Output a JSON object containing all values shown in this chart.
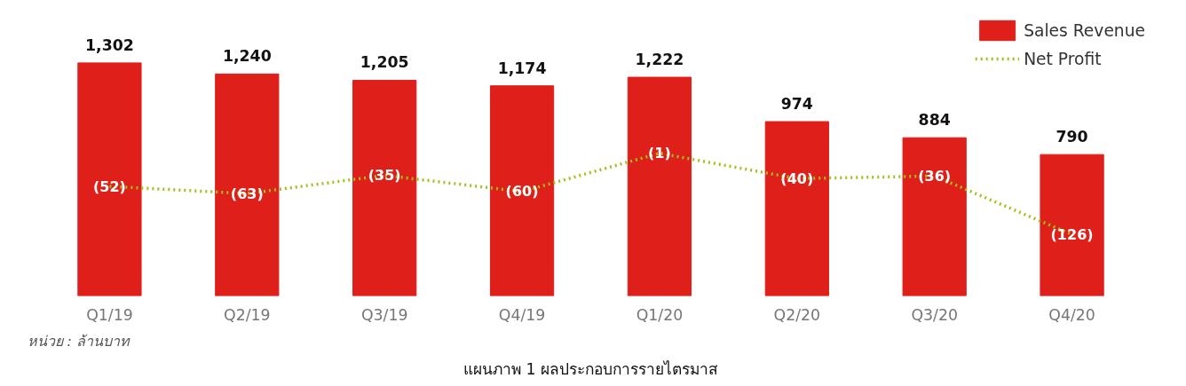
{
  "chart_data": {
    "type": "bar",
    "title": "แผนภาพ 1 ผลประกอบการรายไตรมาส",
    "categories": [
      "Q1/19",
      "Q2/19",
      "Q3/19",
      "Q4/19",
      "Q1/20",
      "Q2/20",
      "Q3/20",
      "Q4/20"
    ],
    "series": [
      {
        "name": "Sales Revenue",
        "color": "#df1f1a",
        "values": [
          1302,
          1240,
          1205,
          1174,
          1222,
          974,
          884,
          790
        ],
        "value_labels": [
          "1,302",
          "1,240",
          "1,205",
          "1,174",
          "1,222",
          "974",
          "884",
          "790"
        ]
      },
      {
        "name": "Net Profit",
        "type": "line",
        "axis": "y2",
        "color": "#9cc31c",
        "line_style": "dotted",
        "values": [
          -52,
          -63,
          -35,
          -60,
          -1,
          -40,
          -36,
          -126
        ],
        "value_labels": [
          "(52)",
          "(63)",
          "(35)",
          "(60)",
          "(1)",
          "(40)",
          "(36)",
          "(126)"
        ]
      }
    ],
    "tick_labels": "x",
    "grid": false,
    "legend": "top right",
    "annotations": [
      "หน่วย : ล้านบาท"
    ]
  }
}
